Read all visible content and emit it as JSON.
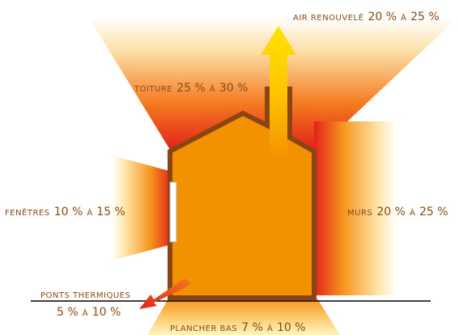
{
  "labels": {
    "air": {
      "name": "Air renouvelé",
      "range_a": "20 %",
      "sep": "à",
      "range_b": "25 %"
    },
    "toiture": {
      "name": "Toiture",
      "range_a": "25 %",
      "sep": "à",
      "range_b": "30 %"
    },
    "fenetres": {
      "name": "Fenêtres",
      "range_a": "10 %",
      "sep": "à",
      "range_b": "15 %"
    },
    "murs": {
      "name": "Murs",
      "range_a": "20 %",
      "sep": "à",
      "range_b": "25 %"
    },
    "ponts": {
      "name": "Ponts thermiques",
      "range_a": "5 %",
      "sep": "à",
      "range_b": "10 %"
    },
    "plancher": {
      "name": "Plancher bas",
      "range_a": "7 %",
      "sep": "à",
      "range_b": "10 %"
    }
  },
  "colors": {
    "text": "#8a4a14",
    "house_fill": "#f39200",
    "house_outline": "#8b4513",
    "heat_hot": "#e2231a",
    "heat_mid": "#f7941d",
    "heat_cool": "#fff3c4",
    "arrow_top": "#ffe400",
    "ground_line": "#000000"
  }
}
